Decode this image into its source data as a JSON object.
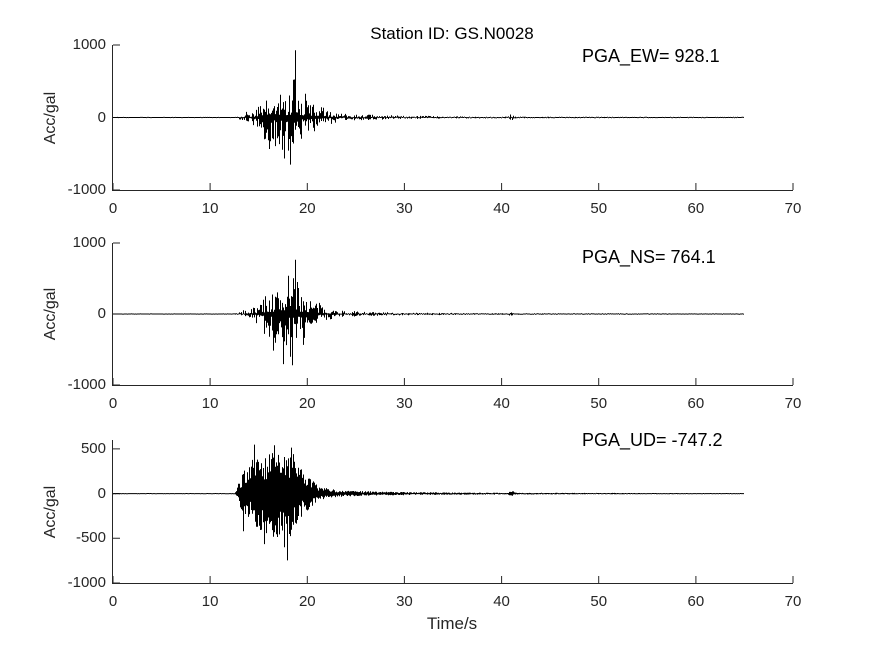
{
  "figure": {
    "title": "Station ID: GS.N0028",
    "xlabel": "Time/s",
    "background": "#ffffff",
    "trace_color": "#000000",
    "axis_color": "#262626"
  },
  "chart_data": [
    {
      "type": "line",
      "channel": "EW",
      "pga_label": "PGA_EW= 928.1",
      "pga_value": 928.1,
      "pga_time": 18.74,
      "ylabel": "Acc/gal",
      "xlim": [
        0,
        70
      ],
      "ylim": [
        -1000,
        1000
      ],
      "xticks": [
        0,
        10,
        20,
        30,
        40,
        50,
        60,
        70
      ],
      "yticks": [
        1000,
        0,
        -1000
      ],
      "trace_start": 0,
      "trace_end": 65,
      "seed": 42,
      "spikiness": 2.1,
      "base_fill": 0.08,
      "envelope": [
        [
          0,
          3,
          3
        ],
        [
          12.2,
          4,
          4
        ],
        [
          13,
          35,
          30
        ],
        [
          13.5,
          75,
          65
        ],
        [
          14,
          95,
          85
        ],
        [
          14.5,
          135,
          115
        ],
        [
          15,
          165,
          155
        ],
        [
          15.5,
          215,
          265
        ],
        [
          16,
          265,
          430
        ],
        [
          16.5,
          305,
          390
        ],
        [
          17,
          345,
          490
        ],
        [
          17.5,
          440,
          570
        ],
        [
          18,
          390,
          660
        ],
        [
          18.4,
          510,
          460
        ],
        [
          18.7,
          700,
          390
        ],
        [
          19,
          430,
          430
        ],
        [
          19.5,
          360,
          310
        ],
        [
          20,
          310,
          285
        ],
        [
          20.5,
          235,
          225
        ],
        [
          21,
          205,
          185
        ],
        [
          21.5,
          155,
          145
        ],
        [
          22,
          115,
          105
        ],
        [
          23,
          75,
          68
        ],
        [
          24,
          58,
          52
        ],
        [
          25,
          47,
          42
        ],
        [
          27,
          36,
          32
        ],
        [
          30,
          26,
          23
        ],
        [
          33,
          21,
          19
        ],
        [
          36,
          16,
          15
        ],
        [
          40.6,
          13,
          13
        ],
        [
          41,
          68,
          42
        ],
        [
          41.5,
          13,
          13
        ],
        [
          45,
          11,
          11
        ],
        [
          50,
          9,
          9
        ],
        [
          55,
          8,
          8
        ],
        [
          60,
          7,
          7
        ],
        [
          65,
          7,
          7
        ]
      ],
      "spikes": [
        [
          18.74,
          928.1
        ],
        [
          18.2,
          -650
        ],
        [
          17.6,
          -565
        ],
        [
          16.05,
          -435
        ],
        [
          18.5,
          520
        ],
        [
          15.55,
          -300
        ]
      ]
    },
    {
      "type": "line",
      "channel": "NS",
      "pga_label": "PGA_NS= 764.1",
      "pga_value": 764.1,
      "pga_time": 18.74,
      "ylabel": "Acc/gal",
      "xlim": [
        0,
        70
      ],
      "ylim": [
        -1000,
        1000
      ],
      "xticks": [
        0,
        10,
        20,
        30,
        40,
        50,
        60,
        70
      ],
      "yticks": [
        1000,
        0,
        -1000
      ],
      "trace_start": 0,
      "trace_end": 65,
      "seed": 7,
      "spikiness": 2.1,
      "base_fill": 0.08,
      "envelope": [
        [
          0,
          3,
          3
        ],
        [
          12.4,
          4,
          4
        ],
        [
          13,
          28,
          24
        ],
        [
          13.5,
          65,
          55
        ],
        [
          14,
          85,
          75
        ],
        [
          14.5,
          115,
          105
        ],
        [
          15,
          185,
          165
        ],
        [
          15.5,
          265,
          305
        ],
        [
          16,
          355,
          430
        ],
        [
          16.5,
          310,
          510
        ],
        [
          17,
          430,
          570
        ],
        [
          17.5,
          390,
          700
        ],
        [
          18,
          530,
          610
        ],
        [
          18.4,
          460,
          720
        ],
        [
          18.7,
          620,
          510
        ],
        [
          19,
          410,
          390
        ],
        [
          19.5,
          390,
          430
        ],
        [
          20,
          310,
          270
        ],
        [
          20.5,
          225,
          205
        ],
        [
          21,
          175,
          155
        ],
        [
          21.5,
          135,
          125
        ],
        [
          22,
          95,
          88
        ],
        [
          23,
          62,
          57
        ],
        [
          24,
          47,
          44
        ],
        [
          25,
          40,
          37
        ],
        [
          27,
          29,
          27
        ],
        [
          30,
          21,
          19
        ],
        [
          34,
          16,
          15
        ],
        [
          38,
          13,
          12
        ],
        [
          40.6,
          11,
          11
        ],
        [
          41,
          58,
          38
        ],
        [
          41.5,
          11,
          11
        ],
        [
          45,
          10,
          10
        ],
        [
          50,
          8,
          8
        ],
        [
          55,
          7,
          7
        ],
        [
          60,
          6,
          6
        ],
        [
          65,
          6,
          6
        ]
      ],
      "spikes": [
        [
          18.74,
          764.1
        ],
        [
          18.42,
          -722
        ],
        [
          17.55,
          -705
        ],
        [
          16.45,
          -515
        ],
        [
          19.6,
          -435
        ],
        [
          18.05,
          540
        ]
      ]
    },
    {
      "type": "line",
      "channel": "UD",
      "pga_label": "PGA_UD= -747.2",
      "pga_value": -747.2,
      "pga_time": 17.9,
      "ylabel": "Acc/gal",
      "xlim": [
        0,
        70
      ],
      "ylim": [
        -1000,
        600
      ],
      "xticks": [
        0,
        10,
        20,
        30,
        40,
        50,
        60,
        70
      ],
      "yticks": [
        500,
        0,
        -500,
        -1000
      ],
      "trace_start": 0,
      "trace_end": 65,
      "seed": 99,
      "spikiness": 0.85,
      "base_fill": 0.3,
      "envelope": [
        [
          0,
          3,
          3
        ],
        [
          12.5,
          5,
          5
        ],
        [
          12.9,
          130,
          110
        ],
        [
          13.2,
          230,
          210
        ],
        [
          13.6,
          270,
          250
        ],
        [
          14,
          310,
          290
        ],
        [
          14.5,
          480,
          360
        ],
        [
          15,
          430,
          410
        ],
        [
          15.5,
          390,
          520
        ],
        [
          16,
          460,
          430
        ],
        [
          16.5,
          500,
          490
        ],
        [
          17,
          490,
          530
        ],
        [
          17.5,
          450,
          610
        ],
        [
          17.9,
          430,
          640
        ],
        [
          18.3,
          510,
          460
        ],
        [
          18.7,
          460,
          410
        ],
        [
          19,
          310,
          290
        ],
        [
          19.5,
          270,
          250
        ],
        [
          20,
          210,
          190
        ],
        [
          20.5,
          155,
          135
        ],
        [
          21,
          115,
          105
        ],
        [
          21.5,
          85,
          75
        ],
        [
          22,
          60,
          55
        ],
        [
          23,
          42,
          38
        ],
        [
          24,
          34,
          31
        ],
        [
          26,
          27,
          25
        ],
        [
          28,
          23,
          21
        ],
        [
          31,
          17,
          16
        ],
        [
          35,
          13,
          12
        ],
        [
          40.6,
          10,
          10
        ],
        [
          41,
          42,
          32
        ],
        [
          41.5,
          10,
          10
        ],
        [
          45,
          9,
          9
        ],
        [
          50,
          8,
          8
        ],
        [
          55,
          7,
          7
        ],
        [
          60,
          6,
          6
        ],
        [
          65,
          6,
          6
        ]
      ],
      "spikes": [
        [
          17.9,
          -747.2
        ],
        [
          14.5,
          548
        ],
        [
          16.6,
          542
        ],
        [
          18.3,
          515
        ],
        [
          15.55,
          -565
        ],
        [
          13.4,
          -420
        ]
      ]
    }
  ]
}
